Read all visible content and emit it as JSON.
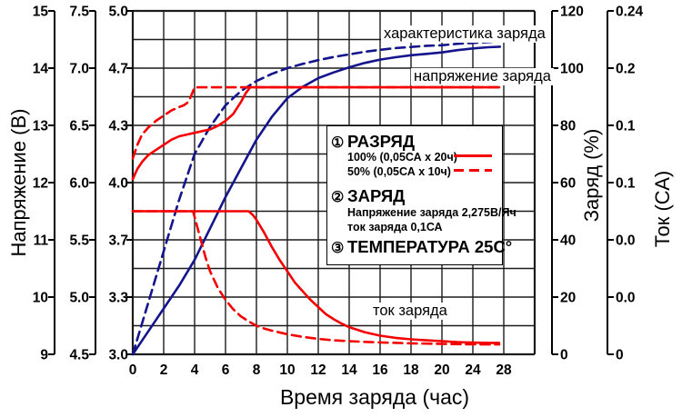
{
  "colors": {
    "red": "#f40000",
    "blue": "#14148c",
    "grid": "#1c1c1c",
    "background": "#ffffff",
    "text": "#000000"
  },
  "chart_data": {
    "type": "line",
    "x_axis": {
      "label": "Время заряда (час)",
      "ticks": [
        "0",
        "2",
        "4",
        "6",
        "8",
        "10",
        "12",
        "14",
        "16",
        "18",
        "20",
        "24",
        "28"
      ],
      "range": [
        0,
        28
      ]
    },
    "y_axes": [
      {
        "id": "voltage_12v",
        "label": "Напряжение (В)",
        "ticks": [
          "15",
          "14",
          "13",
          "12",
          "11",
          "10",
          "9"
        ],
        "range": [
          15,
          9
        ]
      },
      {
        "id": "voltage_6v",
        "label": "",
        "ticks": [
          "7.5",
          "7.0",
          "6.5",
          "6.0",
          "5.5",
          "5.0",
          "4.5"
        ],
        "range": [
          7.5,
          4.5
        ]
      },
      {
        "id": "voltage_4v",
        "label": "",
        "ticks": [
          "5.0",
          "4.7",
          "4.3",
          "4.0",
          "3.7",
          "3.3",
          "3.0"
        ],
        "range": [
          5.0,
          3.0
        ]
      },
      {
        "id": "charge",
        "label": "Заряд (%)",
        "ticks": [
          "120",
          "100",
          "80",
          "60",
          "40",
          "20",
          "0"
        ],
        "range": [
          120,
          0
        ]
      },
      {
        "id": "current",
        "label": "Ток (СА)",
        "ticks": [
          "0.24",
          "0.2",
          "0.1",
          "0.1",
          "0.0",
          "0.0",
          "0"
        ],
        "range": [
          0.24,
          0
        ]
      }
    ],
    "grid": true,
    "legend_position": "center",
    "curve_labels": [
      {
        "text": "характеристика заряда"
      },
      {
        "text": "напряжение заряда"
      },
      {
        "text": "ток заряда"
      }
    ],
    "series": [
      {
        "name": "характеристика заряда — 50% (0,05СА х 10ч)",
        "axis": "charge",
        "style": "dashed",
        "color": "#14148c",
        "points": [
          [
            0,
            0
          ],
          [
            1,
            18
          ],
          [
            2,
            36
          ],
          [
            3,
            54
          ],
          [
            4,
            70
          ],
          [
            5,
            79.5
          ],
          [
            6,
            87
          ],
          [
            7,
            92
          ],
          [
            8,
            95.5
          ],
          [
            9,
            98
          ],
          [
            10,
            100
          ],
          [
            11,
            101.5
          ],
          [
            12,
            102.8
          ],
          [
            13,
            103.9
          ],
          [
            14,
            104.8
          ],
          [
            15,
            105.7
          ],
          [
            16,
            106.4
          ],
          [
            17,
            107
          ],
          [
            18,
            107.4
          ],
          [
            19,
            107.8
          ],
          [
            20,
            108
          ],
          [
            22,
            108.5
          ],
          [
            24,
            108.8
          ],
          [
            26,
            109.1
          ],
          [
            27.5,
            109.3
          ]
        ]
      },
      {
        "name": "характеристика заряда — 100% (0,05СА х 20ч)",
        "axis": "charge",
        "style": "solid",
        "color": "#14148c",
        "points": [
          [
            0,
            0
          ],
          [
            1,
            8
          ],
          [
            2,
            16
          ],
          [
            3,
            24
          ],
          [
            4,
            33
          ],
          [
            5,
            44
          ],
          [
            6,
            55
          ],
          [
            7,
            65
          ],
          [
            8,
            75
          ],
          [
            9,
            83
          ],
          [
            10,
            89.5
          ],
          [
            11,
            93.5
          ],
          [
            12,
            96.5
          ],
          [
            13,
            98.5
          ],
          [
            14,
            100.3
          ],
          [
            15,
            101.8
          ],
          [
            16,
            103
          ],
          [
            17,
            103.8
          ],
          [
            18,
            104.5
          ],
          [
            19,
            105
          ],
          [
            20,
            105.5
          ],
          [
            22,
            106.3
          ],
          [
            24,
            106.9
          ],
          [
            26,
            107.3
          ],
          [
            27.5,
            107.5
          ]
        ]
      },
      {
        "name": "напряжение заряда — 50% разряд",
        "axis": "voltage_4v",
        "style": "dashed",
        "color": "#f40000",
        "points": [
          [
            0,
            4.14
          ],
          [
            0.3,
            4.22
          ],
          [
            0.6,
            4.28
          ],
          [
            1,
            4.32
          ],
          [
            1.5,
            4.36
          ],
          [
            2,
            4.39
          ],
          [
            2.5,
            4.42
          ],
          [
            3,
            4.44
          ],
          [
            3.3,
            4.45
          ],
          [
            3.6,
            4.47
          ],
          [
            3.8,
            4.51
          ],
          [
            4,
            4.555
          ],
          [
            27.4,
            4.555
          ]
        ]
      },
      {
        "name": "напряжение заряда — 100% разряд",
        "axis": "voltage_4v",
        "style": "solid",
        "color": "#f40000",
        "points": [
          [
            0,
            4.02
          ],
          [
            0.3,
            4.08
          ],
          [
            0.6,
            4.12
          ],
          [
            1,
            4.16
          ],
          [
            1.5,
            4.19
          ],
          [
            2,
            4.22
          ],
          [
            2.5,
            4.25
          ],
          [
            3,
            4.27
          ],
          [
            3.5,
            4.28
          ],
          [
            4,
            4.29
          ],
          [
            4.5,
            4.3
          ],
          [
            5,
            4.31
          ],
          [
            5.5,
            4.33
          ],
          [
            6,
            4.36
          ],
          [
            6.5,
            4.4
          ],
          [
            7,
            4.47
          ],
          [
            7.3,
            4.52
          ],
          [
            7.6,
            4.555
          ],
          [
            27.4,
            4.555
          ]
        ]
      },
      {
        "name": "ток заряда — 50% разряд",
        "axis": "current",
        "style": "dashed",
        "color": "#f40000",
        "points": [
          [
            0,
            0.1
          ],
          [
            3.9,
            0.1
          ],
          [
            4.1,
            0.092
          ],
          [
            4.4,
            0.08
          ],
          [
            4.7,
            0.068
          ],
          [
            5,
            0.058
          ],
          [
            5.5,
            0.0465
          ],
          [
            6,
            0.038
          ],
          [
            6.5,
            0.0315
          ],
          [
            7,
            0.0265
          ],
          [
            7.5,
            0.023
          ],
          [
            8,
            0.02
          ],
          [
            8.5,
            0.018
          ],
          [
            9,
            0.0165
          ],
          [
            10,
            0.014
          ],
          [
            11,
            0.0122
          ],
          [
            12,
            0.0108
          ],
          [
            13,
            0.0098
          ],
          [
            14,
            0.0092
          ],
          [
            15,
            0.0087
          ],
          [
            16,
            0.0083
          ],
          [
            18,
            0.0077
          ],
          [
            20,
            0.0073
          ],
          [
            22,
            0.0071
          ],
          [
            24,
            0.007
          ],
          [
            27.4,
            0.0069
          ]
        ]
      },
      {
        "name": "ток заряда — 100% разряд",
        "axis": "current",
        "style": "solid",
        "color": "#f40000",
        "points": [
          [
            0,
            0.1
          ],
          [
            7.5,
            0.1
          ],
          [
            7.8,
            0.097
          ],
          [
            8,
            0.094
          ],
          [
            8.5,
            0.085
          ],
          [
            9,
            0.075
          ],
          [
            9.5,
            0.066
          ],
          [
            10,
            0.058
          ],
          [
            10.5,
            0.05
          ],
          [
            11,
            0.044
          ],
          [
            11.5,
            0.038
          ],
          [
            12,
            0.033
          ],
          [
            12.5,
            0.028
          ],
          [
            13,
            0.0245
          ],
          [
            13.5,
            0.0215
          ],
          [
            14,
            0.019
          ],
          [
            15,
            0.0155
          ],
          [
            16,
            0.013
          ],
          [
            17,
            0.0115
          ],
          [
            18,
            0.0105
          ],
          [
            19,
            0.0098
          ],
          [
            20,
            0.0092
          ],
          [
            22,
            0.0085
          ],
          [
            24,
            0.0082
          ],
          [
            26,
            0.008
          ],
          [
            27.4,
            0.008
          ]
        ]
      }
    ]
  },
  "legend": {
    "item1": {
      "num": "①",
      "title": "РАЗРЯД",
      "line1": "100% (0,05СА х 20ч)",
      "line2": "50% (0,05СА х 10ч)"
    },
    "item2": {
      "num": "②",
      "title": "ЗАРЯД",
      "line1": "Напряжение заряда 2,275В/Яч",
      "line2": "ток заряда 0,1СА"
    },
    "item3": {
      "num": "③",
      "title": "ТЕМПЕРАТУРА 25С°"
    }
  }
}
